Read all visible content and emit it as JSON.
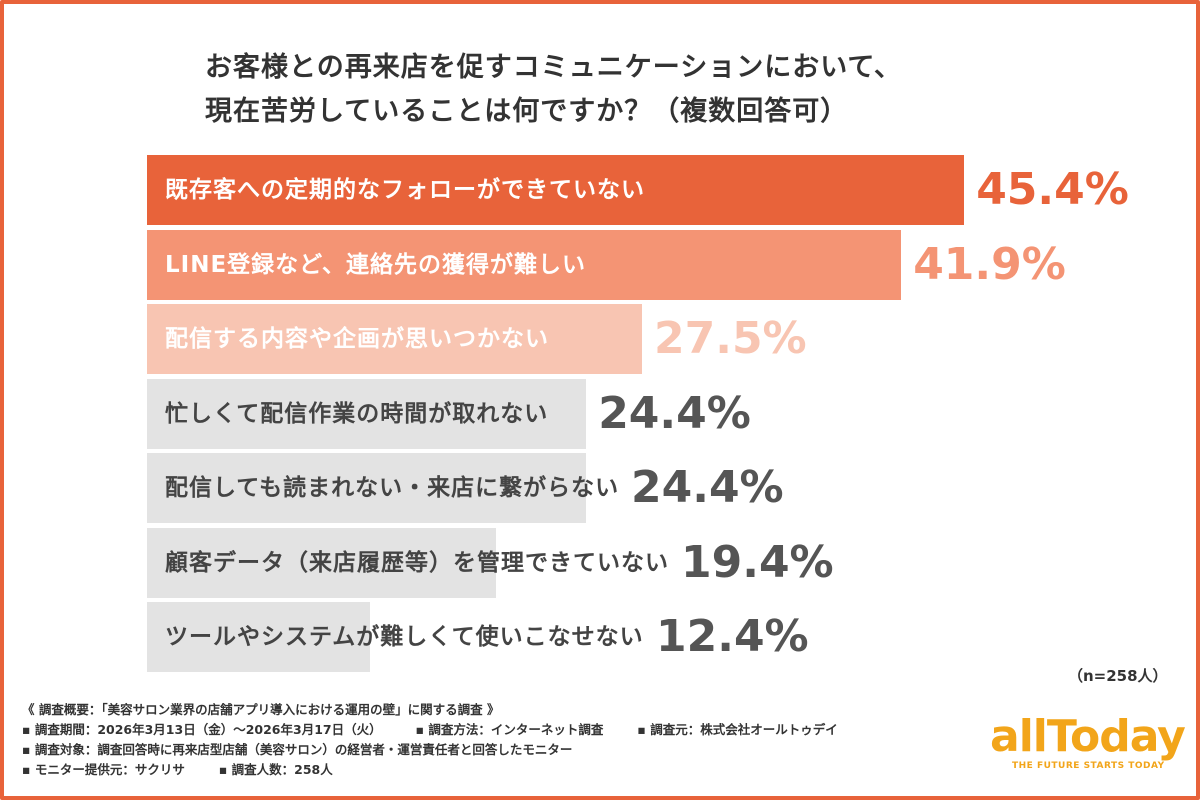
{
  "title": {
    "line1": "お客様との再来店を促すコミュニケーションにおいて、",
    "line2": "現在苦労していることは何ですか？（複数回答可）"
  },
  "chart_data": {
    "type": "bar",
    "orientation": "horizontal",
    "title": "お客様との再来店を促すコミュニケーションにおいて、現在苦労していることは何ですか？（複数回答可）",
    "categories": [
      "既存客への定期的なフォローができていない",
      "LINE登録など、連絡先の獲得が難しい",
      "配信する内容や企画が思いつかない",
      "忙しくて配信作業の時間が取れない",
      "配信しても読まれない・来店に繋がらない",
      "顧客データ（来店履歴等）を管理できていない",
      "ツールやシステムが難しくて使いこなせない"
    ],
    "values": [
      45.4,
      41.9,
      27.5,
      24.4,
      24.4,
      19.4,
      12.4
    ],
    "value_labels": [
      "45.4%",
      "41.9%",
      "27.5%",
      "24.4%",
      "24.4%",
      "19.4%",
      "12.4%"
    ],
    "bar_colors": [
      "#e8633a",
      "#f49474",
      "#f8c5b2",
      "#e3e3e3",
      "#e3e3e3",
      "#e3e3e3",
      "#e3e3e3"
    ],
    "label_colors": [
      "#ffffff",
      "#ffffff",
      "#ffffff",
      "#444444",
      "#444444",
      "#444444",
      "#444444"
    ],
    "value_colors": [
      "#e8633a",
      "#f49474",
      "#f8c5b2",
      "#555555",
      "#555555",
      "#555555",
      "#555555"
    ],
    "grid": false,
    "unit": "%"
  },
  "sample_note": "（n=258人）",
  "footer": {
    "survey_title": "《 調査概要：「美容サロン業界の店舗アプリ導入における運用の壁」に関する調査 》",
    "period": "▪ 調査期間：2026年3月13日（金）〜2026年3月17日（火）",
    "method": "▪ 調査方法：インターネット調査",
    "organizer": "▪ 調査元：株式会社オールトゥデイ",
    "target": "▪ 調査対象：調査回答時に再来店型店舗（美容サロン）の経営者・運営責任者と回答したモニター",
    "monitor": "▪ モニター提供元：サクリサ",
    "respondents": "▪ 調査人数：258人"
  },
  "logo": {
    "word": "allToday",
    "tagline": "THE FUTURE STARTS TODAY",
    "color": "#f2a51a"
  }
}
